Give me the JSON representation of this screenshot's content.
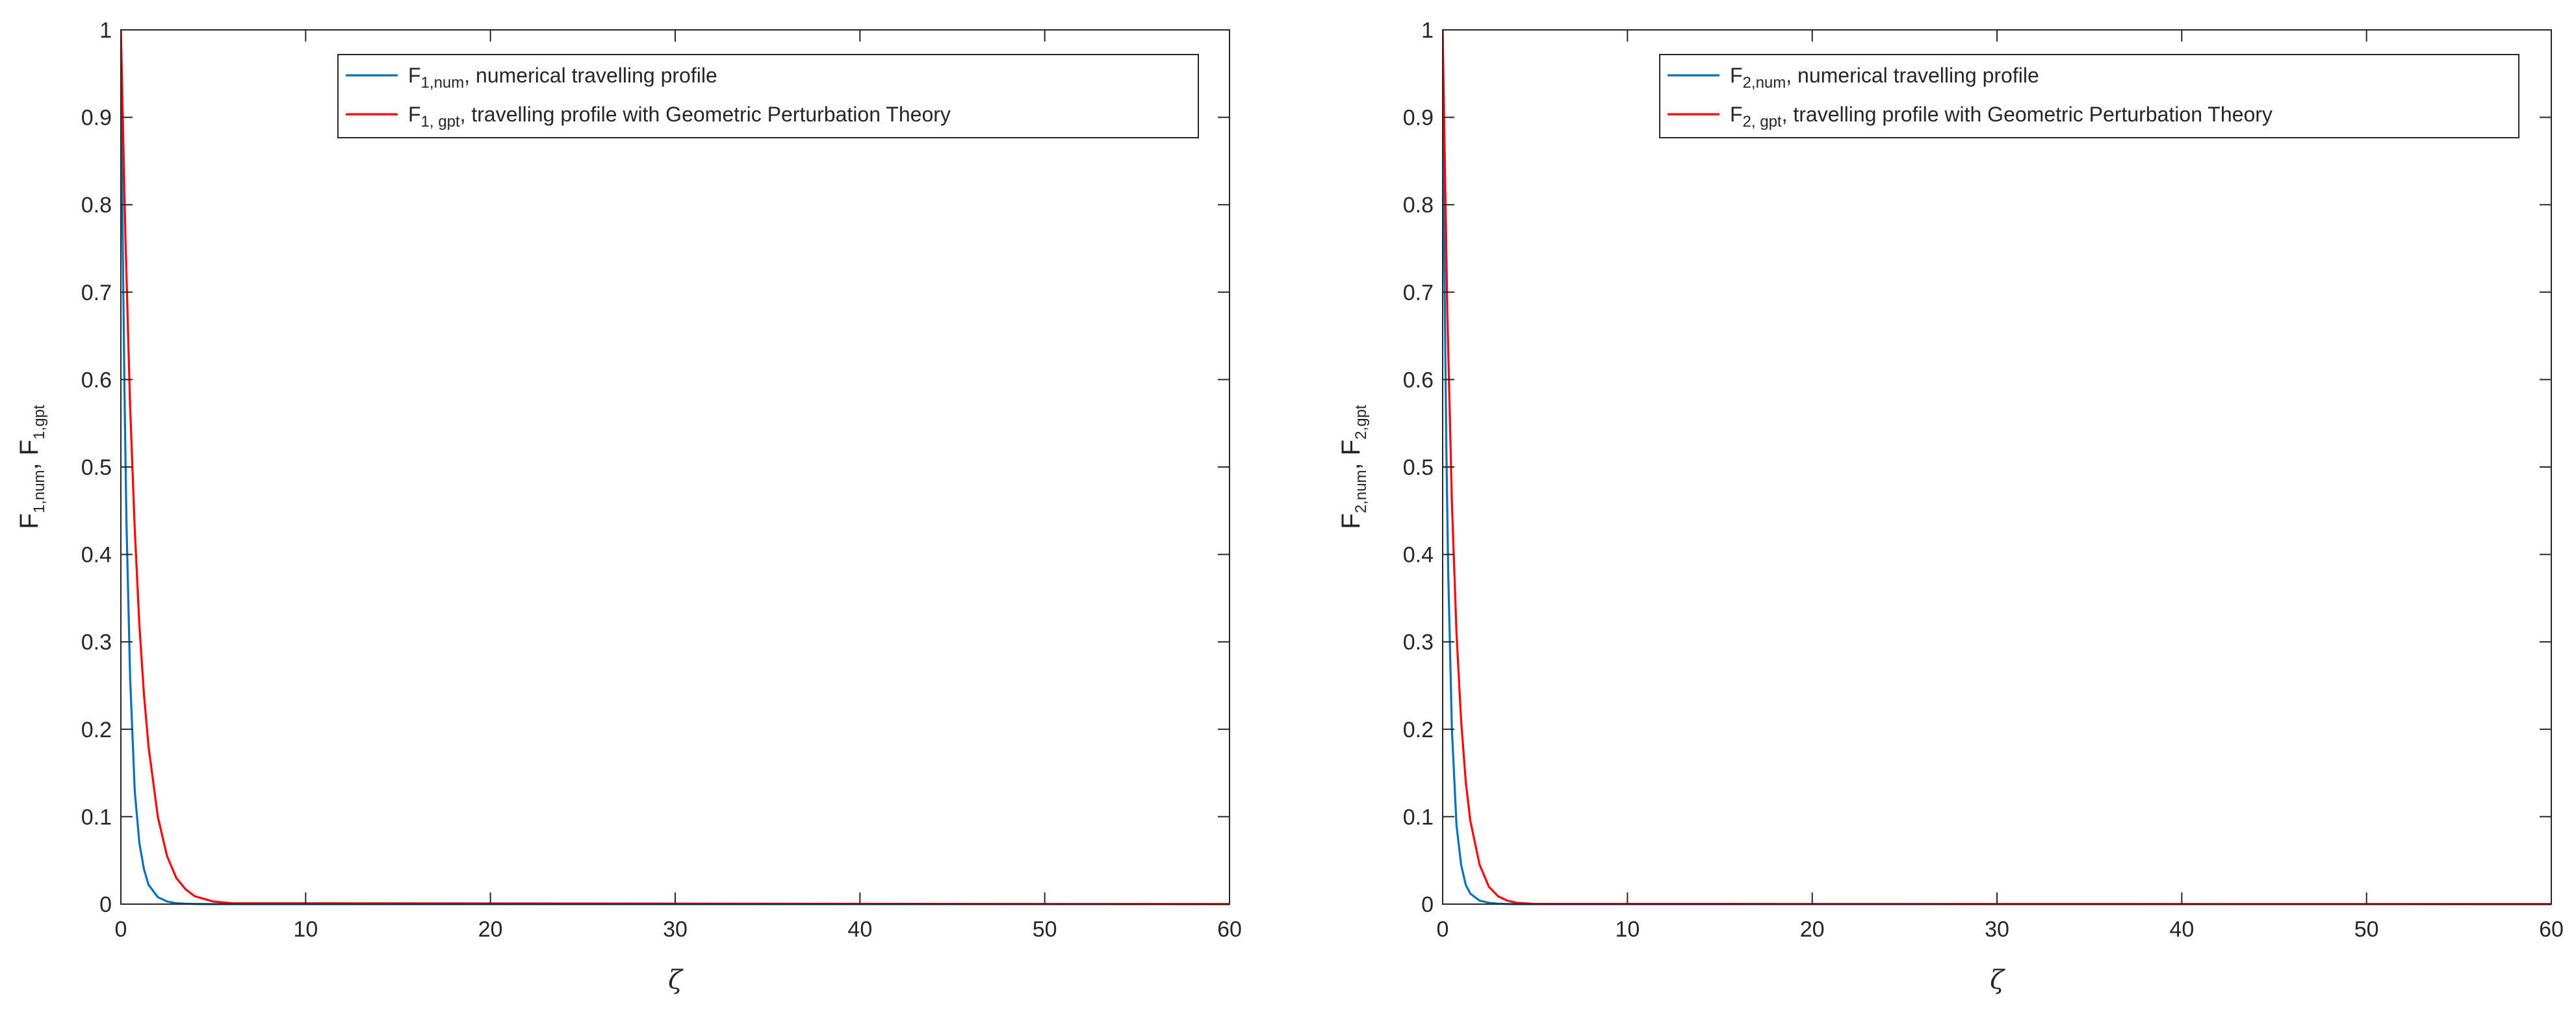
{
  "chart_data": [
    {
      "type": "line",
      "xlabel": "ζ",
      "ylabel": {
        "parts": [
          {
            "base": "F",
            "sub": "1,num"
          },
          {
            "base": ", F",
            "sub": "1,gpt"
          }
        ]
      },
      "xlim": [
        0,
        60
      ],
      "ylim": [
        0,
        1
      ],
      "xticks": [
        0,
        10,
        20,
        30,
        40,
        50,
        60
      ],
      "yticks": [
        0,
        0.1,
        0.2,
        0.3,
        0.4,
        0.5,
        0.6,
        0.7,
        0.8,
        0.9,
        1
      ],
      "grid": false,
      "legend_position": "top-right",
      "series": [
        {
          "name": {
            "base": "F",
            "sub": "1,num",
            "text": ", numerical travelling profile"
          },
          "color": "#0072BD",
          "x": [
            0,
            0.1,
            0.2,
            0.3,
            0.5,
            0.75,
            1.0,
            1.25,
            1.5,
            2.0,
            2.5,
            3.0,
            3.5,
            4.0,
            5.0,
            6.0,
            60
          ],
          "y": [
            1.0,
            0.76,
            0.58,
            0.44,
            0.26,
            0.13,
            0.07,
            0.04,
            0.022,
            0.008,
            0.003,
            0.001,
            0.0005,
            0.0002,
            0,
            0,
            0
          ]
        },
        {
          "name": {
            "base": "F",
            "sub": "1, gpt",
            "text": ", travelling profile with Geometric Perturbation Theory"
          },
          "color": "#FF0000",
          "x": [
            0,
            0.25,
            0.5,
            0.75,
            1.0,
            1.25,
            1.5,
            2.0,
            2.5,
            3.0,
            3.5,
            4.0,
            5.0,
            6.0,
            60
          ],
          "y": [
            1.0,
            0.76,
            0.57,
            0.43,
            0.32,
            0.24,
            0.18,
            0.1,
            0.055,
            0.03,
            0.017,
            0.009,
            0.003,
            0.001,
            0
          ]
        }
      ]
    },
    {
      "type": "line",
      "xlabel": "ζ",
      "ylabel": {
        "parts": [
          {
            "base": "F",
            "sub": "2,num"
          },
          {
            "base": ", F",
            "sub": "2,gpt"
          }
        ]
      },
      "xlim": [
        0,
        60
      ],
      "ylim": [
        0,
        1
      ],
      "xticks": [
        0,
        10,
        20,
        30,
        40,
        50,
        60
      ],
      "yticks": [
        0,
        0.1,
        0.2,
        0.3,
        0.4,
        0.5,
        0.6,
        0.7,
        0.8,
        0.9,
        1
      ],
      "grid": false,
      "legend_position": "top-right",
      "series": [
        {
          "name": {
            "base": "F",
            "sub": "2,num",
            "text": ", numerical travelling profile"
          },
          "color": "#0072BD",
          "x": [
            0,
            0.1,
            0.2,
            0.3,
            0.5,
            0.75,
            1.0,
            1.25,
            1.5,
            2.0,
            2.5,
            3.0,
            3.5,
            4.0,
            5.0,
            60
          ],
          "y": [
            1.0,
            0.72,
            0.52,
            0.38,
            0.2,
            0.09,
            0.045,
            0.022,
            0.012,
            0.004,
            0.0015,
            0.0005,
            0.0002,
            0,
            0,
            0
          ]
        },
        {
          "name": {
            "base": "F",
            "sub": "2, gpt",
            "text": ", travelling profile with Geometric Perturbation Theory"
          },
          "color": "#FF0000",
          "x": [
            0,
            0.25,
            0.5,
            0.75,
            1.0,
            1.25,
            1.5,
            2.0,
            2.5,
            3.0,
            3.5,
            4.0,
            5.0,
            60
          ],
          "y": [
            1.0,
            0.68,
            0.46,
            0.31,
            0.21,
            0.14,
            0.095,
            0.045,
            0.02,
            0.009,
            0.004,
            0.0015,
            0.0002,
            0
          ]
        }
      ]
    }
  ]
}
